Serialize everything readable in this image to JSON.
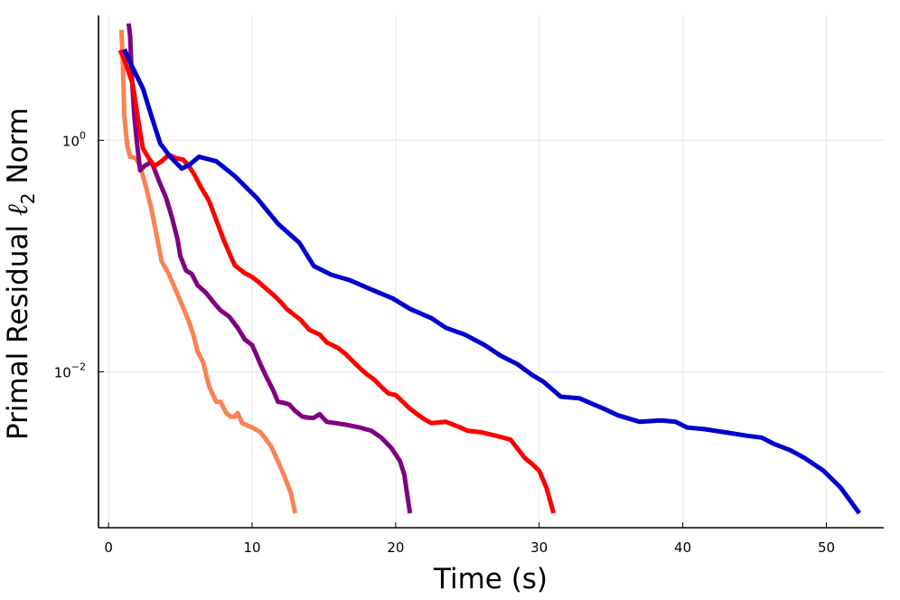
{
  "chart_data": {
    "type": "line",
    "xlabel": "Time (s)",
    "ylabel": {
      "pre": "Primal Residual ",
      "sym": "ℓ",
      "sub": "2",
      "post": " Norm"
    },
    "x_scale": "linear",
    "y_scale": "log10",
    "xlim": [
      -0.7,
      54.0
    ],
    "ylim": [
      0.00045,
      12.0
    ],
    "x_ticks": [
      0,
      10,
      20,
      30,
      40,
      50
    ],
    "x_tick_labels": [
      "0",
      "10",
      "20",
      "30",
      "40",
      "50"
    ],
    "y_ticks": [
      {
        "value": 1,
        "base": "10",
        "exp": "0"
      },
      {
        "value": 0.01,
        "base": "10",
        "exp": "−2"
      }
    ],
    "grid": true,
    "legend": "none",
    "series": [
      {
        "name": "series-orange",
        "color": "#fa8253",
        "points": [
          [
            0.9,
            9.0
          ],
          [
            1.0,
            4.5
          ],
          [
            1.1,
            1.6
          ],
          [
            1.3,
            0.9
          ],
          [
            1.5,
            0.72
          ],
          [
            1.9,
            0.7
          ],
          [
            2.2,
            0.6
          ],
          [
            2.6,
            0.4
          ],
          [
            3.0,
            0.25
          ],
          [
            3.4,
            0.14
          ],
          [
            3.7,
            0.09
          ],
          [
            4.2,
            0.07
          ],
          [
            4.7,
            0.05
          ],
          [
            5.2,
            0.036
          ],
          [
            5.6,
            0.027
          ],
          [
            5.9,
            0.021
          ],
          [
            6.2,
            0.015
          ],
          [
            6.6,
            0.012
          ],
          [
            7.0,
            0.0075
          ],
          [
            7.5,
            0.0055
          ],
          [
            7.8,
            0.0055
          ],
          [
            8.2,
            0.0044
          ],
          [
            8.5,
            0.0041
          ],
          [
            8.8,
            0.0041
          ],
          [
            9.0,
            0.0044
          ],
          [
            9.3,
            0.0036
          ],
          [
            10.0,
            0.0033
          ],
          [
            10.6,
            0.003
          ],
          [
            11.3,
            0.0023
          ],
          [
            11.7,
            0.0018
          ],
          [
            12.2,
            0.0013
          ],
          [
            12.7,
            0.0009
          ],
          [
            13.0,
            0.0006
          ]
        ]
      },
      {
        "name": "series-purple",
        "color": "#800080",
        "points": [
          [
            1.4,
            10.2
          ],
          [
            1.5,
            8.0
          ],
          [
            1.6,
            4.0
          ],
          [
            1.8,
            1.6
          ],
          [
            2.0,
            0.9
          ],
          [
            2.2,
            0.55
          ],
          [
            2.5,
            0.6
          ],
          [
            3.0,
            0.65
          ],
          [
            3.5,
            0.45
          ],
          [
            4.0,
            0.32
          ],
          [
            4.4,
            0.22
          ],
          [
            4.8,
            0.14
          ],
          [
            5.0,
            0.1
          ],
          [
            5.4,
            0.075
          ],
          [
            5.8,
            0.07
          ],
          [
            6.2,
            0.056
          ],
          [
            6.8,
            0.048
          ],
          [
            7.3,
            0.04
          ],
          [
            7.8,
            0.034
          ],
          [
            8.4,
            0.03
          ],
          [
            9.0,
            0.024
          ],
          [
            9.5,
            0.019
          ],
          [
            10.0,
            0.017
          ],
          [
            10.3,
            0.014
          ],
          [
            10.6,
            0.0115
          ],
          [
            11.0,
            0.009
          ],
          [
            11.5,
            0.0068
          ],
          [
            11.8,
            0.0055
          ],
          [
            12.2,
            0.0054
          ],
          [
            12.6,
            0.0052
          ],
          [
            13.0,
            0.0046
          ],
          [
            13.5,
            0.0041
          ],
          [
            14.0,
            0.004
          ],
          [
            14.3,
            0.004
          ],
          [
            14.7,
            0.0043
          ],
          [
            15.2,
            0.0037
          ],
          [
            16.5,
            0.0035
          ],
          [
            17.5,
            0.0033
          ],
          [
            18.3,
            0.0031
          ],
          [
            19.0,
            0.0027
          ],
          [
            19.7,
            0.0022
          ],
          [
            20.3,
            0.0017
          ],
          [
            20.6,
            0.0013
          ],
          [
            21.0,
            0.0006
          ]
        ]
      },
      {
        "name": "series-red",
        "color": "#ff0000",
        "points": [
          [
            0.8,
            6.0
          ],
          [
            1.1,
            5.0
          ],
          [
            1.7,
            3.0
          ],
          [
            2.1,
            1.4
          ],
          [
            2.4,
            0.85
          ],
          [
            2.8,
            0.7
          ],
          [
            3.2,
            0.6
          ],
          [
            3.7,
            0.66
          ],
          [
            4.2,
            0.75
          ],
          [
            4.7,
            0.7
          ],
          [
            5.2,
            0.68
          ],
          [
            5.6,
            0.6
          ],
          [
            6.0,
            0.5
          ],
          [
            6.4,
            0.4
          ],
          [
            7.0,
            0.3
          ],
          [
            7.6,
            0.19
          ],
          [
            8.0,
            0.14
          ],
          [
            8.5,
            0.1
          ],
          [
            8.8,
            0.083
          ],
          [
            9.5,
            0.071
          ],
          [
            10.0,
            0.066
          ],
          [
            10.5,
            0.059
          ],
          [
            11.0,
            0.052
          ],
          [
            11.5,
            0.046
          ],
          [
            12.0,
            0.04
          ],
          [
            12.4,
            0.035
          ],
          [
            12.8,
            0.032
          ],
          [
            13.4,
            0.028
          ],
          [
            14.0,
            0.023
          ],
          [
            14.7,
            0.021
          ],
          [
            15.2,
            0.018
          ],
          [
            16.0,
            0.016
          ],
          [
            16.5,
            0.0143
          ],
          [
            17.0,
            0.0124
          ],
          [
            17.5,
            0.0108
          ],
          [
            18.0,
            0.0095
          ],
          [
            18.5,
            0.0086
          ],
          [
            19.0,
            0.0074
          ],
          [
            19.5,
            0.0065
          ],
          [
            20.0,
            0.0063
          ],
          [
            20.5,
            0.0055
          ],
          [
            21.0,
            0.0048
          ],
          [
            21.5,
            0.0043
          ],
          [
            22.0,
            0.0039
          ],
          [
            22.5,
            0.0036
          ],
          [
            23.5,
            0.0037
          ],
          [
            24.0,
            0.0035
          ],
          [
            24.5,
            0.0033
          ],
          [
            25.0,
            0.0031
          ],
          [
            26.0,
            0.003
          ],
          [
            27.0,
            0.0028
          ],
          [
            28.0,
            0.0026
          ],
          [
            29.0,
            0.0018
          ],
          [
            29.5,
            0.0016
          ],
          [
            30.0,
            0.0014
          ],
          [
            30.5,
            0.001
          ],
          [
            31.0,
            0.0006
          ]
        ]
      },
      {
        "name": "series-blue",
        "color": "#0000cd",
        "points": [
          [
            1.1,
            6.1
          ],
          [
            1.7,
            4.2
          ],
          [
            2.4,
            2.8
          ],
          [
            3.0,
            1.6
          ],
          [
            3.6,
            0.94
          ],
          [
            4.3,
            0.72
          ],
          [
            5.1,
            0.57
          ],
          [
            5.6,
            0.61
          ],
          [
            6.3,
            0.72
          ],
          [
            7.5,
            0.66
          ],
          [
            8.8,
            0.49
          ],
          [
            10.3,
            0.32
          ],
          [
            11.8,
            0.19
          ],
          [
            13.3,
            0.13
          ],
          [
            14.3,
            0.082
          ],
          [
            15.5,
            0.069
          ],
          [
            16.8,
            0.062
          ],
          [
            18.2,
            0.052
          ],
          [
            19.8,
            0.043
          ],
          [
            21.0,
            0.035
          ],
          [
            22.5,
            0.029
          ],
          [
            23.5,
            0.024
          ],
          [
            24.8,
            0.021
          ],
          [
            26.2,
            0.017
          ],
          [
            27.3,
            0.0138
          ],
          [
            28.5,
            0.0116
          ],
          [
            29.5,
            0.0094
          ],
          [
            30.3,
            0.0082
          ],
          [
            31.5,
            0.0061
          ],
          [
            32.8,
            0.0059
          ],
          [
            34.5,
            0.0048
          ],
          [
            35.5,
            0.0042
          ],
          [
            37.0,
            0.0037
          ],
          [
            38.5,
            0.0038
          ],
          [
            39.5,
            0.0037
          ],
          [
            40.3,
            0.0033
          ],
          [
            41.5,
            0.0032
          ],
          [
            43.0,
            0.003
          ],
          [
            44.5,
            0.0028
          ],
          [
            45.5,
            0.0027
          ],
          [
            46.3,
            0.0024
          ],
          [
            47.5,
            0.0021
          ],
          [
            48.5,
            0.0018
          ],
          [
            49.8,
            0.0014
          ],
          [
            51.0,
            0.001
          ],
          [
            52.3,
            0.0006
          ]
        ]
      }
    ]
  }
}
